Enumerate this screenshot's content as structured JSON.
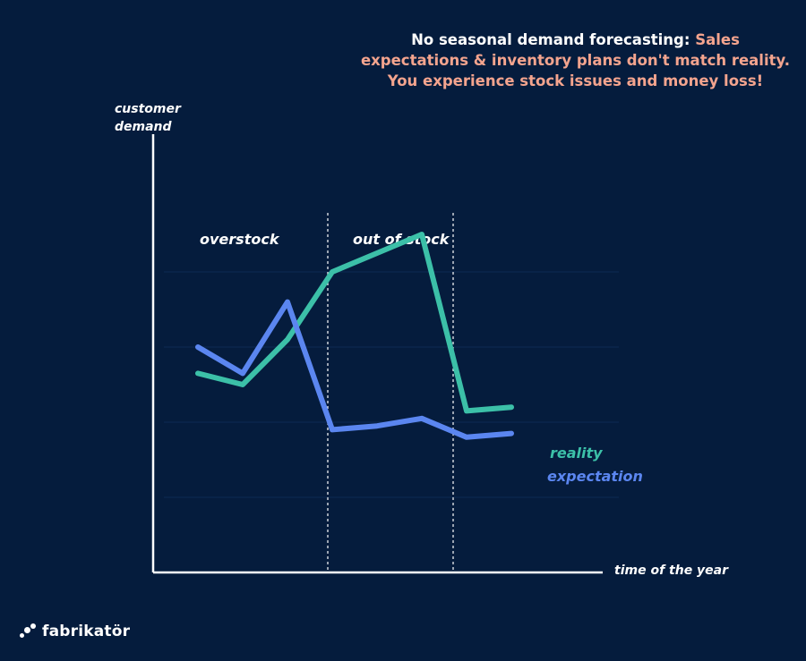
{
  "headline": {
    "lead": "No seasonal demand forecasting: ",
    "accent": "Sales expectations & inventory plans don't match reality. You experience stock issues and money loss!"
  },
  "brand": {
    "name": "fabrikatör",
    "logo_icon": "dots-logo-icon"
  },
  "colors": {
    "background": "#051c3d",
    "reality": "#3cc0a8",
    "expectation": "#5b86f0",
    "accent": "#f4a48e"
  },
  "chart_data": {
    "type": "line",
    "xlabel": "time of the year",
    "ylabel": "customer demand",
    "x": [
      1,
      2,
      3,
      4,
      5,
      6,
      7,
      8
    ],
    "xlim": [
      0,
      11
    ],
    "ylim": [
      0,
      10
    ],
    "grid": true,
    "axis_ticks": false,
    "series": [
      {
        "name": "reality",
        "color": "#3cc0a8",
        "values": [
          5.3,
          5.0,
          6.2,
          8.0,
          8.5,
          9.0,
          4.3,
          4.4
        ]
      },
      {
        "name": "expectation",
        "color": "#5b86f0",
        "values": [
          6.0,
          5.3,
          7.2,
          3.8,
          3.9,
          4.1,
          3.6,
          3.7
        ]
      }
    ],
    "regions": [
      {
        "label": "overstock",
        "x_start": 0,
        "x_end": 3.9
      },
      {
        "label": "out of stock",
        "x_start": 3.9,
        "x_end": 6.7
      }
    ],
    "legend_placement": "end of lines (right)"
  }
}
